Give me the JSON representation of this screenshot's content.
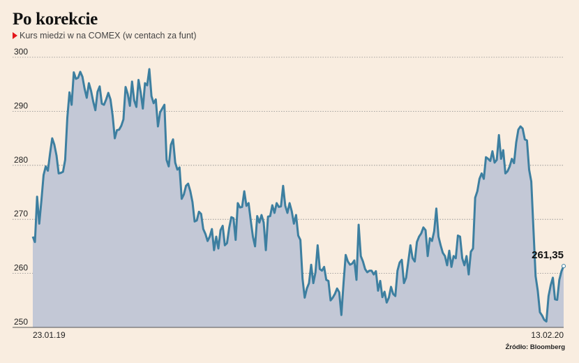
{
  "header": {
    "title": "Po korekcie",
    "subtitle": "Kurs miedzi w na COMEX (w centach za funt)"
  },
  "source": "Źródło: Bloomberg",
  "colors": {
    "background": "#f9ede0",
    "line": "#3d7fa0",
    "area": "#c3c8d6",
    "accent": "#e3161b"
  },
  "chart_data": {
    "type": "area",
    "title": "Po korekcie",
    "subtitle": "Kurs miedzi w na COMEX (w centach za funt)",
    "xlabel": "",
    "ylabel": "",
    "ylim": [
      250,
      300
    ],
    "yticks": [
      250,
      260,
      270,
      280,
      290,
      300
    ],
    "ytick_labels": [
      "250",
      "260",
      "270",
      "280",
      "290",
      "300"
    ],
    "grid": true,
    "x_start_label": "23.01.19",
    "x_end_label": "13.02.20",
    "last_value_label": "261,35",
    "series": [
      {
        "values": [
          266.8,
          265.8,
          274.2,
          269.2,
          273.5,
          278.2,
          279.8,
          279.0,
          282.2,
          285.0,
          283.8,
          281.8,
          278.5,
          278.6,
          278.8,
          281.0,
          288.8,
          293.5,
          291.2,
          297.2,
          296.0,
          296.2,
          297.3,
          296.4,
          294.2,
          292.5,
          295.2,
          293.8,
          291.8,
          290.2,
          293.6,
          294.6,
          291.4,
          291.2,
          292.2,
          293.4,
          292.2,
          289.2,
          285.0,
          286.5,
          286.6,
          287.3,
          288.5,
          294.5,
          293.2,
          291.0,
          295.5,
          292.0,
          290.8,
          295.8,
          293.5,
          290.5,
          295.2,
          294.8,
          297.8,
          292.8,
          291.5,
          292.2,
          287.2,
          289.8,
          290.5,
          291.2,
          281.0,
          279.8,
          283.8,
          284.8,
          280.5,
          279.2,
          279.6,
          273.8,
          274.6,
          276.2,
          276.6,
          275.2,
          273.2,
          269.6,
          269.8,
          271.4,
          271.0,
          268.2,
          267.3,
          266.0,
          266.8,
          268.2,
          264.3,
          266.8,
          264.6,
          268.0,
          268.8,
          265.2,
          265.6,
          268.4,
          270.4,
          270.2,
          266.2,
          273.0,
          272.2,
          272.3,
          275.2,
          272.5,
          273.0,
          269.8,
          266.8,
          265.0,
          270.6,
          269.4,
          270.8,
          269.4,
          264.3,
          270.5,
          270.6,
          272.6,
          271.2,
          273.0,
          272.3,
          272.4,
          276.2,
          272.5,
          271.2,
          273.0,
          271.5,
          269.2,
          270.8,
          267.0,
          266.2,
          259.0,
          255.5,
          257.2,
          258.2,
          261.6,
          258.2,
          260.2,
          265.2,
          260.8,
          260.5,
          261.2,
          258.8,
          258.6,
          255.0,
          255.5,
          256.2,
          257.2,
          256.5,
          252.3,
          258.2,
          263.4,
          262.2,
          261.6,
          261.8,
          262.4,
          258.8,
          269.0,
          263.2,
          262.2,
          260.8,
          260.2,
          260.5,
          260.5,
          259.8,
          260.4,
          256.8,
          258.6,
          255.6,
          256.6,
          254.6,
          255.5,
          257.5,
          256.2,
          255.8,
          260.5,
          262.0,
          262.5,
          258.2,
          259.2,
          262.2,
          265.2,
          262.8,
          262.2,
          265.8,
          266.8,
          267.4,
          268.5,
          268.0,
          263.2,
          266.5,
          266.0,
          267.8,
          272.0,
          266.8,
          265.2,
          263.8,
          263.2,
          261.5,
          264.2,
          261.2,
          263.2,
          262.8,
          267.0,
          266.8,
          262.8,
          261.5,
          263.2,
          259.8,
          264.0,
          264.6,
          274.0,
          275.2,
          277.5,
          278.5,
          277.5,
          281.5,
          281.2,
          280.8,
          282.6,
          280.5,
          281.0,
          285.6,
          281.2,
          282.8,
          278.5,
          278.9,
          279.8,
          281.2,
          280.4,
          284.2,
          286.6,
          287.2,
          286.8,
          284.8,
          284.6,
          279.2,
          277.0,
          268.2,
          259.5,
          256.8,
          252.8,
          252.2,
          251.4,
          251.1,
          255.8,
          257.8,
          259.2,
          255.2,
          255.1,
          258.8,
          260.4,
          261.35
        ]
      }
    ]
  }
}
